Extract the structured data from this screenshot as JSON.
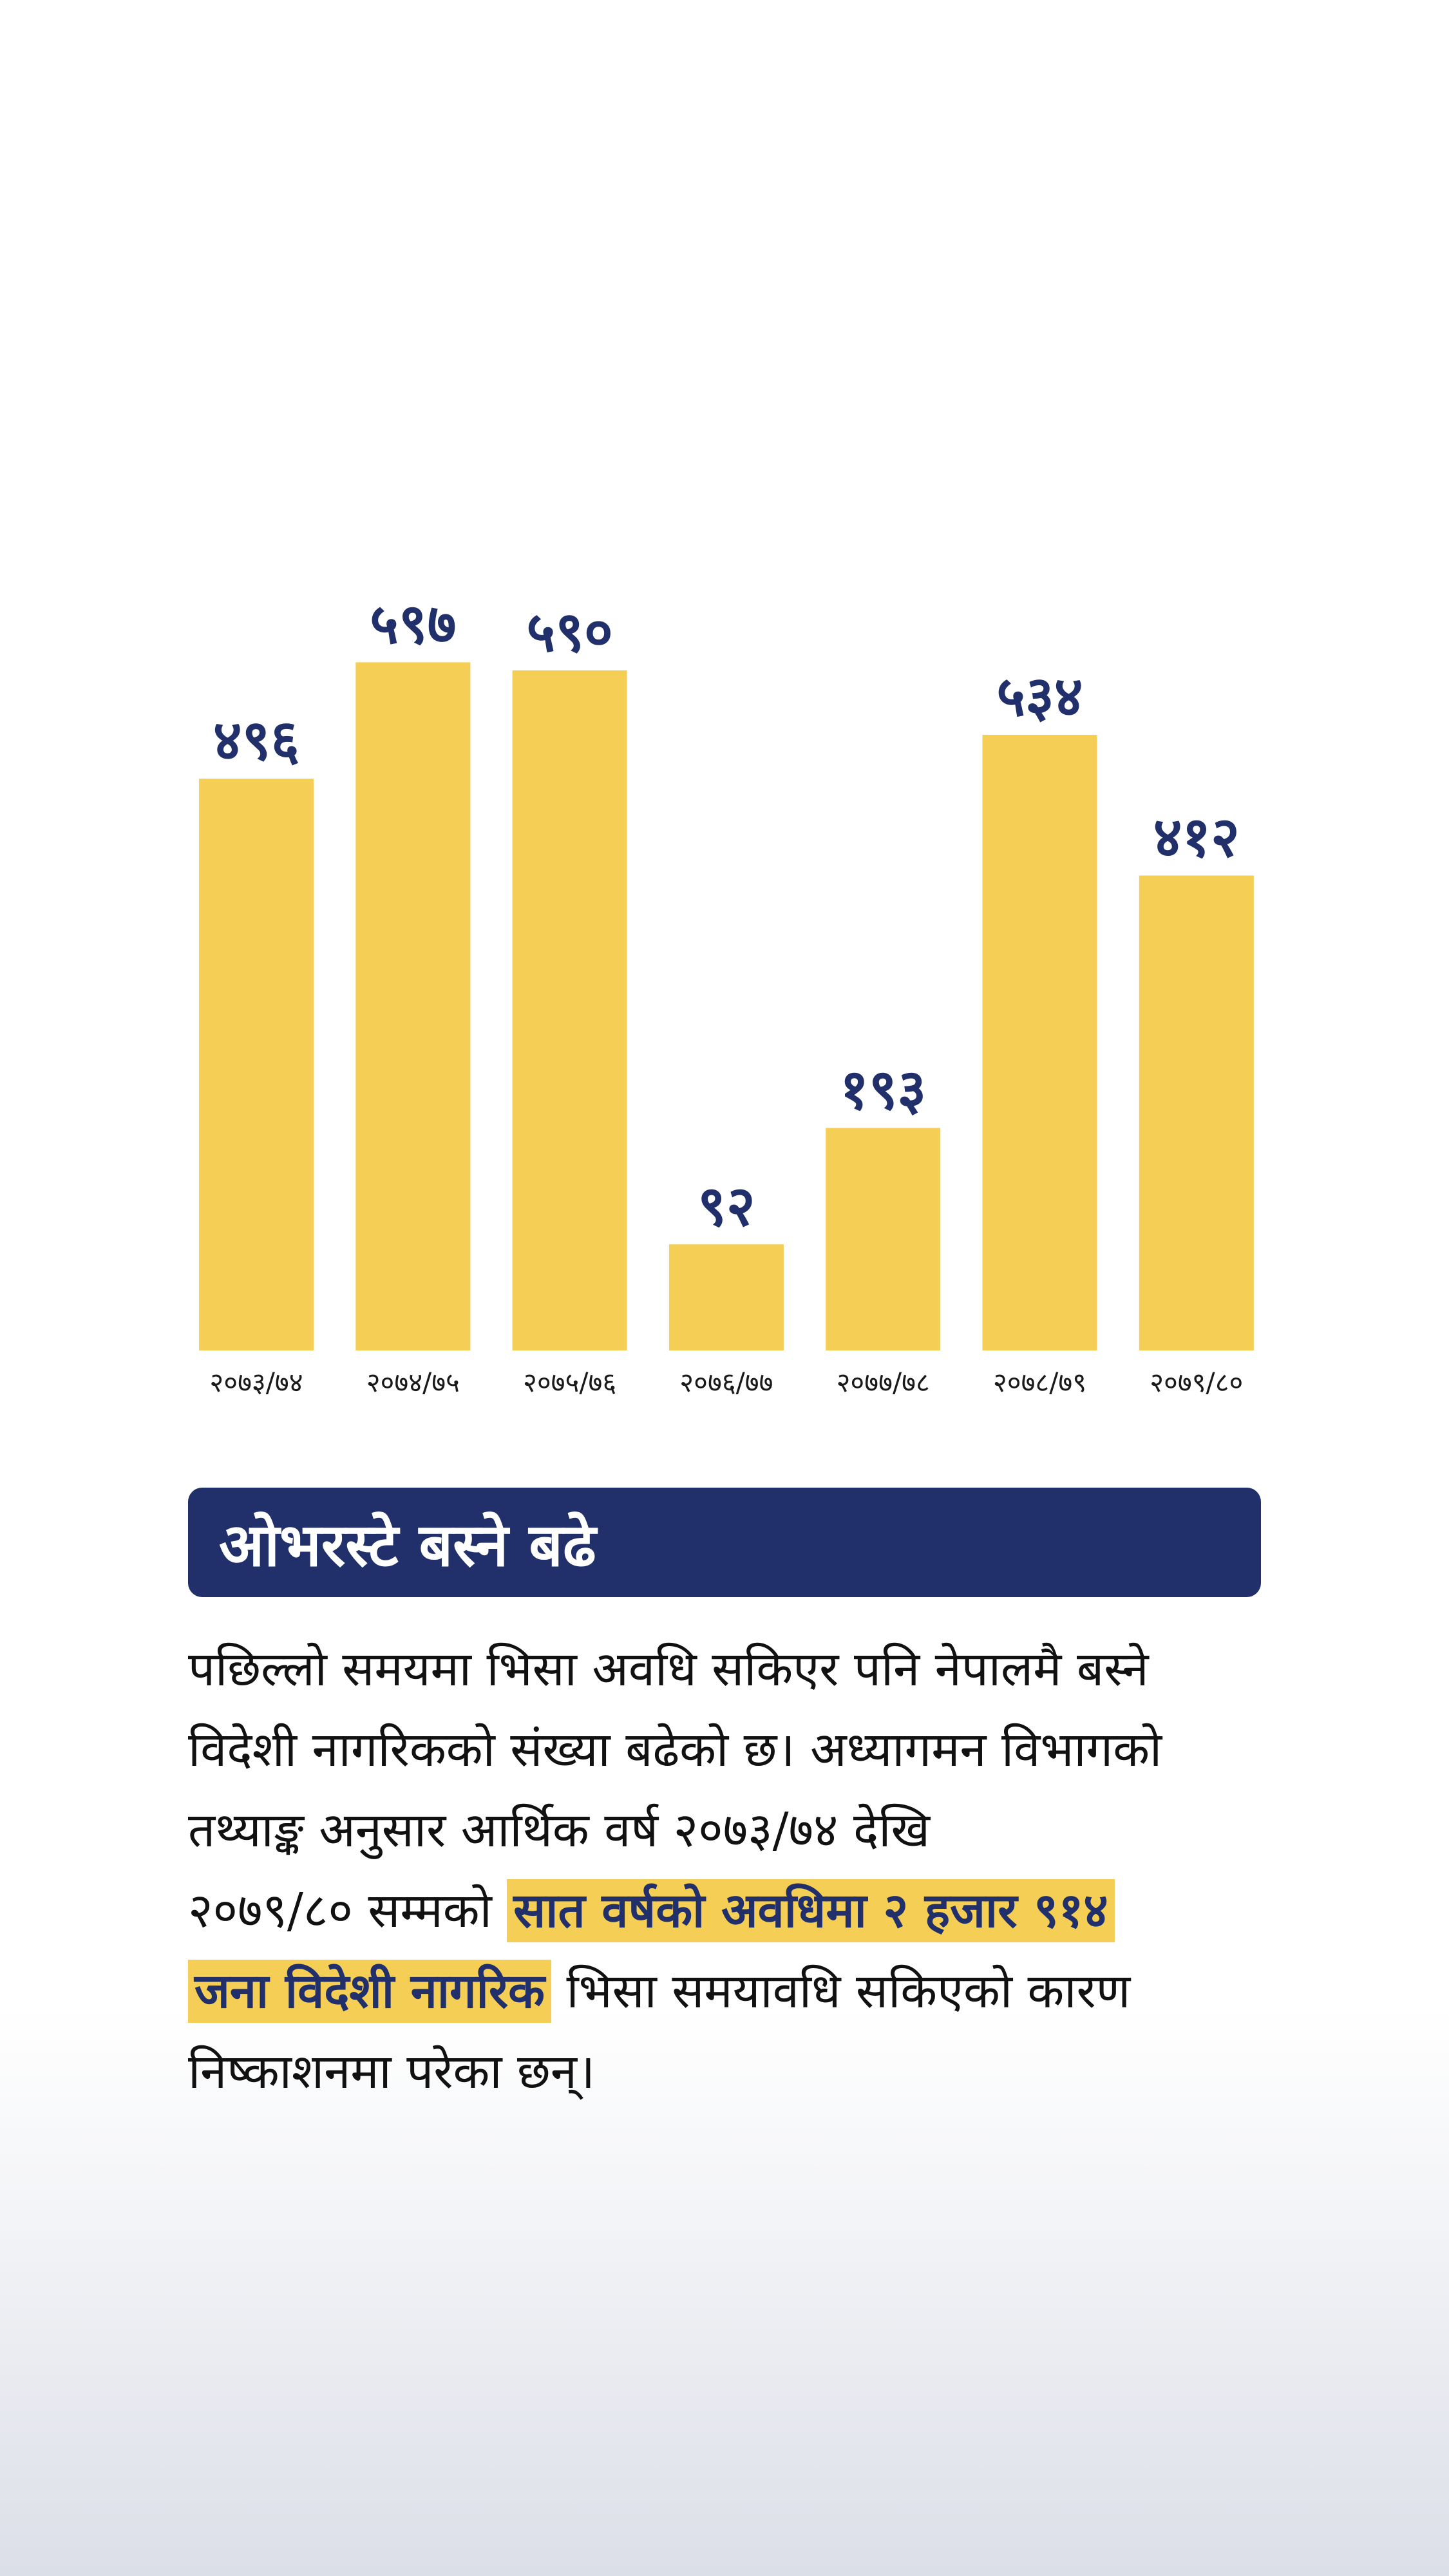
{
  "chart_data": {
    "type": "bar",
    "categories": [
      "२०७३/७४",
      "२०७४/७५",
      "२०७५/७६",
      "२०७६/७७",
      "२०७७/७८",
      "२०७८/७९",
      "२०७९/८०"
    ],
    "values": [
      496,
      597,
      590,
      92,
      193,
      534,
      412
    ],
    "value_labels": [
      "४९६",
      "५९७",
      "५९०",
      "९२",
      "१९३",
      "५३४",
      "४१२"
    ],
    "bar_color": "#f4ce55",
    "label_color": "#21306a"
  },
  "headline": "ओभरस्टे बस्ने बढे",
  "body": {
    "line1": "पछिल्लो समयमा भिसा अवधि सकिएर पनि नेपालमै बस्ने",
    "line2": "विदेशी नागरिकको संख्या बढेको छ। अध्यागमन विभागको",
    "line3": "तथ्याङ्क अनुसार आर्थिक वर्ष २०७३/७४ देखि",
    "line4_pre": "२०७९/८० सम्मको ",
    "line4_hl": "सात वर्षको अवधिमा २ हजार ९१४",
    "line5_hl": "जना विदेशी नागरिक",
    "line5_post": " भिसा समयावधि सकिएको कारण",
    "line6": "निष्काशनमा परेका छन्।"
  },
  "colors": {
    "accent": "#f4ce55",
    "navy": "#21306a"
  }
}
